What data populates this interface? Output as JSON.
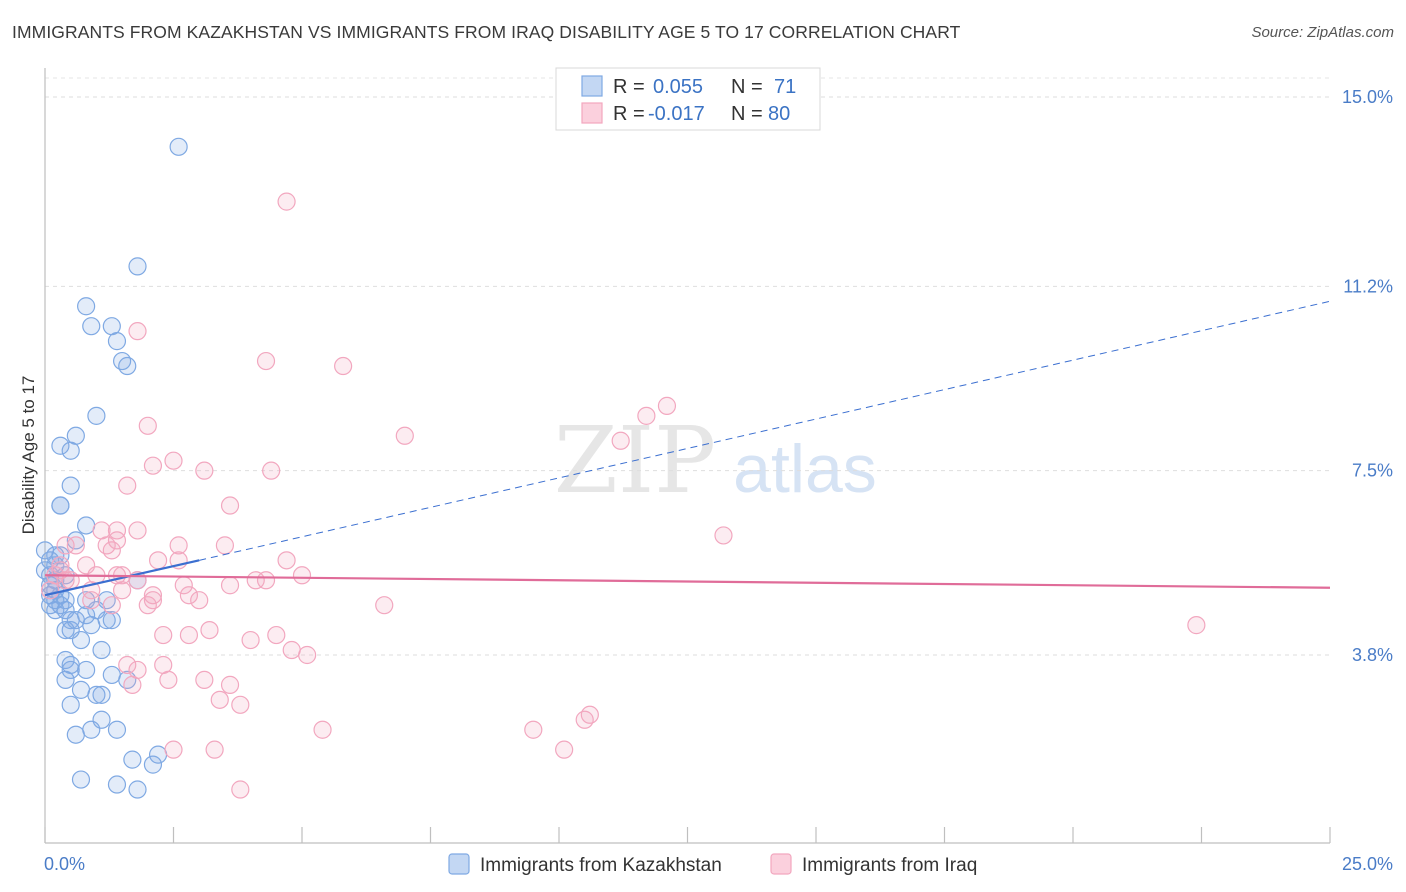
{
  "title": "IMMIGRANTS FROM KAZAKHSTAN VS IMMIGRANTS FROM IRAQ DISABILITY AGE 5 TO 17 CORRELATION CHART",
  "source": "Source: ZipAtlas.com",
  "watermark": {
    "zip": "ZIP",
    "atlas": "atlas"
  },
  "legend": {
    "r_label": "R =",
    "n_label": "N =",
    "series1": {
      "r": "0.055",
      "n": "71"
    },
    "series2": {
      "r": "-0.017",
      "n": "80"
    }
  },
  "chart_data": {
    "type": "scatter",
    "title": "IMMIGRANTS FROM KAZAKHSTAN VS IMMIGRANTS FROM IRAQ DISABILITY AGE 5 TO 17 CORRELATION CHART",
    "xlabel": "",
    "ylabel": "Disability Age 5 to 17",
    "xlim": [
      0,
      25
    ],
    "ylim": [
      0,
      15.5
    ],
    "x_tick_labels": [
      "0.0%",
      "25.0%"
    ],
    "y_ticks": [
      3.8,
      7.5,
      11.2,
      15.0
    ],
    "y_tick_labels": [
      "3.8%",
      "7.5%",
      "11.2%",
      "15.0%"
    ],
    "series": [
      {
        "name": "Immigrants from Kazakhstan",
        "color": "#7fa9e3",
        "trend_color": "#3b6fd0",
        "trend": {
          "x0": 0.0,
          "y0": 5.0,
          "x1": 3.0,
          "y1": 5.7,
          "dash_to_x": 25.0,
          "dash_to_y": 10.9
        },
        "points": [
          [
            2.6,
            14.0
          ],
          [
            1.8,
            11.6
          ],
          [
            0.8,
            10.8
          ],
          [
            0.9,
            10.4
          ],
          [
            1.3,
            10.4
          ],
          [
            1.4,
            10.1
          ],
          [
            1.5,
            9.7
          ],
          [
            1.6,
            9.6
          ],
          [
            1.0,
            8.6
          ],
          [
            0.6,
            8.2
          ],
          [
            0.3,
            8.0
          ],
          [
            0.5,
            7.9
          ],
          [
            0.5,
            7.2
          ],
          [
            0.3,
            6.8
          ],
          [
            0.3,
            6.8
          ],
          [
            0.8,
            6.4
          ],
          [
            0.6,
            6.1
          ],
          [
            0.2,
            5.8
          ],
          [
            0.3,
            5.8
          ],
          [
            0.1,
            5.7
          ],
          [
            0.2,
            5.6
          ],
          [
            0.0,
            5.5
          ],
          [
            0.1,
            5.4
          ],
          [
            0.2,
            5.3
          ],
          [
            0.1,
            5.2
          ],
          [
            0.2,
            5.1
          ],
          [
            0.3,
            5.0
          ],
          [
            0.1,
            5.0
          ],
          [
            0.2,
            4.9
          ],
          [
            0.4,
            4.9
          ],
          [
            0.1,
            4.8
          ],
          [
            0.3,
            4.8
          ],
          [
            0.2,
            4.7
          ],
          [
            0.4,
            4.7
          ],
          [
            0.8,
            4.9
          ],
          [
            1.2,
            4.9
          ],
          [
            1.8,
            5.3
          ],
          [
            1.0,
            4.7
          ],
          [
            0.5,
            4.5
          ],
          [
            0.6,
            4.5
          ],
          [
            1.2,
            4.5
          ],
          [
            1.3,
            4.5
          ],
          [
            0.9,
            4.4
          ],
          [
            0.4,
            4.3
          ],
          [
            0.5,
            4.3
          ],
          [
            0.7,
            4.1
          ],
          [
            0.4,
            3.7
          ],
          [
            0.5,
            3.6
          ],
          [
            0.8,
            3.5
          ],
          [
            0.5,
            3.5
          ],
          [
            1.1,
            3.9
          ],
          [
            1.3,
            3.4
          ],
          [
            1.6,
            3.3
          ],
          [
            0.4,
            3.3
          ],
          [
            0.7,
            3.1
          ],
          [
            1.0,
            3.0
          ],
          [
            1.1,
            3.0
          ],
          [
            0.5,
            2.8
          ],
          [
            1.1,
            2.5
          ],
          [
            0.9,
            2.3
          ],
          [
            1.4,
            2.3
          ],
          [
            0.6,
            2.2
          ],
          [
            1.7,
            1.7
          ],
          [
            2.2,
            1.8
          ],
          [
            2.1,
            1.6
          ],
          [
            0.7,
            1.3
          ],
          [
            1.4,
            1.2
          ],
          [
            1.8,
            1.1
          ],
          [
            0.0,
            5.9
          ],
          [
            0.4,
            5.4
          ],
          [
            0.8,
            4.6
          ]
        ]
      },
      {
        "name": "Immigrants from Iraq",
        "color": "#f2a7bf",
        "trend_color": "#e06c99",
        "trend": {
          "x0": 0.0,
          "y0": 5.4,
          "x1": 25.0,
          "y1": 5.15
        },
        "points": [
          [
            4.7,
            12.9
          ],
          [
            1.8,
            10.3
          ],
          [
            4.3,
            9.7
          ],
          [
            5.8,
            9.6
          ],
          [
            12.1,
            8.8
          ],
          [
            11.7,
            8.6
          ],
          [
            2.0,
            8.4
          ],
          [
            7.0,
            8.2
          ],
          [
            11.2,
            8.1
          ],
          [
            2.5,
            7.7
          ],
          [
            2.1,
            7.6
          ],
          [
            3.1,
            7.5
          ],
          [
            4.4,
            7.5
          ],
          [
            1.6,
            7.2
          ],
          [
            3.6,
            6.8
          ],
          [
            13.2,
            6.2
          ],
          [
            1.1,
            6.3
          ],
          [
            1.4,
            6.3
          ],
          [
            1.4,
            6.1
          ],
          [
            1.8,
            6.3
          ],
          [
            0.4,
            6.0
          ],
          [
            0.6,
            6.0
          ],
          [
            1.2,
            6.0
          ],
          [
            1.3,
            5.9
          ],
          [
            2.6,
            6.0
          ],
          [
            3.5,
            6.0
          ],
          [
            2.2,
            5.7
          ],
          [
            2.6,
            5.7
          ],
          [
            4.7,
            5.7
          ],
          [
            0.3,
            5.6
          ],
          [
            0.8,
            5.6
          ],
          [
            1.0,
            5.4
          ],
          [
            1.4,
            5.4
          ],
          [
            1.5,
            5.4
          ],
          [
            0.3,
            5.5
          ],
          [
            0.2,
            5.4
          ],
          [
            0.4,
            5.3
          ],
          [
            0.9,
            5.1
          ],
          [
            1.8,
            5.3
          ],
          [
            2.7,
            5.2
          ],
          [
            3.6,
            5.2
          ],
          [
            4.1,
            5.3
          ],
          [
            4.3,
            5.3
          ],
          [
            5.0,
            5.4
          ],
          [
            2.1,
            5.0
          ],
          [
            2.1,
            4.9
          ],
          [
            2.8,
            5.0
          ],
          [
            3.0,
            4.9
          ],
          [
            2.0,
            4.8
          ],
          [
            1.3,
            4.8
          ],
          [
            6.6,
            4.8
          ],
          [
            2.3,
            4.2
          ],
          [
            2.8,
            4.2
          ],
          [
            3.2,
            4.3
          ],
          [
            4.0,
            4.1
          ],
          [
            4.5,
            4.2
          ],
          [
            4.8,
            3.9
          ],
          [
            5.1,
            3.8
          ],
          [
            2.3,
            3.6
          ],
          [
            1.6,
            3.6
          ],
          [
            1.8,
            3.5
          ],
          [
            1.7,
            3.2
          ],
          [
            2.4,
            3.3
          ],
          [
            3.1,
            3.3
          ],
          [
            3.6,
            3.2
          ],
          [
            3.4,
            2.9
          ],
          [
            3.8,
            2.8
          ],
          [
            10.5,
            2.5
          ],
          [
            10.6,
            2.6
          ],
          [
            5.4,
            2.3
          ],
          [
            9.5,
            2.3
          ],
          [
            2.5,
            1.9
          ],
          [
            3.3,
            1.9
          ],
          [
            10.1,
            1.9
          ],
          [
            3.8,
            1.1
          ],
          [
            22.4,
            4.4
          ],
          [
            0.1,
            5.1
          ],
          [
            0.5,
            5.3
          ],
          [
            0.9,
            4.9
          ],
          [
            1.5,
            5.1
          ]
        ]
      }
    ]
  }
}
